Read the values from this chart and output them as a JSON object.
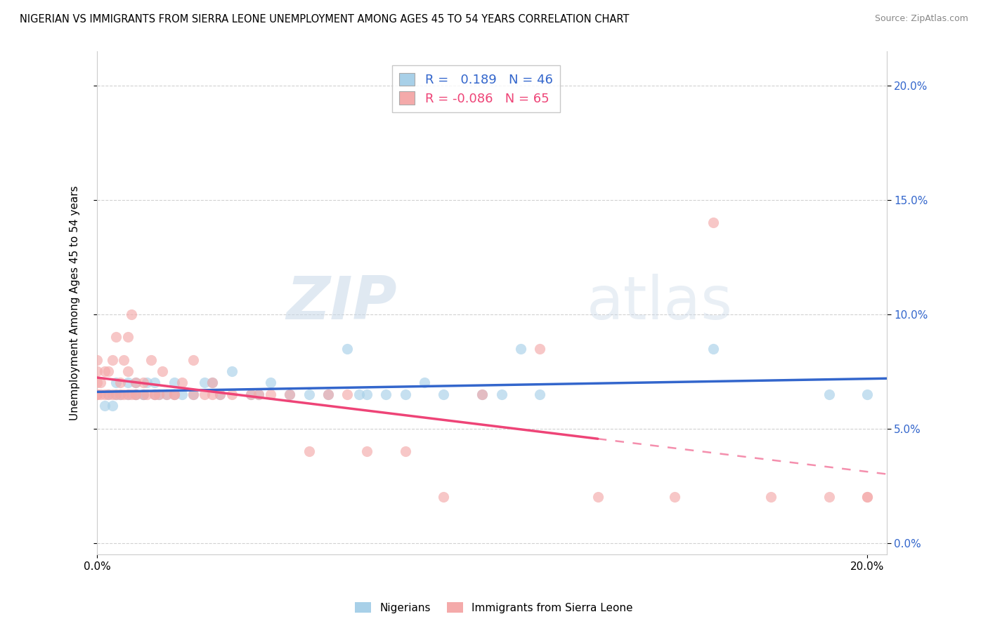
{
  "title": "NIGERIAN VS IMMIGRANTS FROM SIERRA LEONE UNEMPLOYMENT AMONG AGES 45 TO 54 YEARS CORRELATION CHART",
  "source": "Source: ZipAtlas.com",
  "ylabel": "Unemployment Among Ages 45 to 54 years",
  "xlim": [
    0.0,
    0.205
  ],
  "ylim": [
    -0.005,
    0.215
  ],
  "yticks": [
    0.0,
    0.05,
    0.1,
    0.15,
    0.2
  ],
  "xticks": [
    0.0,
    0.2
  ],
  "blue_R": 0.189,
  "blue_N": 46,
  "pink_R": -0.086,
  "pink_N": 65,
  "blue_color": "#A8D0E8",
  "pink_color": "#F4AAAA",
  "blue_line_color": "#3366CC",
  "pink_line_color": "#EE4477",
  "pink_dash_color": "#F4AAAA",
  "watermark_text": "ZIPatlas",
  "legend_label_blue": "Nigerians",
  "legend_label_pink": "Immigrants from Sierra Leone",
  "blue_scatter_x": [
    0.002,
    0.003,
    0.004,
    0.005,
    0.005,
    0.006,
    0.008,
    0.008,
    0.01,
    0.01,
    0.01,
    0.012,
    0.012,
    0.013,
    0.015,
    0.015,
    0.016,
    0.018,
    0.02,
    0.02,
    0.022,
    0.025,
    0.028,
    0.03,
    0.032,
    0.035,
    0.04,
    0.042,
    0.045,
    0.05,
    0.055,
    0.06,
    0.065,
    0.068,
    0.07,
    0.075,
    0.08,
    0.085,
    0.09,
    0.1,
    0.105,
    0.11,
    0.115,
    0.16,
    0.19,
    0.2
  ],
  "blue_scatter_y": [
    0.06,
    0.065,
    0.06,
    0.065,
    0.07,
    0.065,
    0.065,
    0.07,
    0.065,
    0.065,
    0.07,
    0.065,
    0.065,
    0.07,
    0.065,
    0.07,
    0.065,
    0.065,
    0.065,
    0.07,
    0.065,
    0.065,
    0.07,
    0.07,
    0.065,
    0.075,
    0.065,
    0.065,
    0.07,
    0.065,
    0.065,
    0.065,
    0.085,
    0.065,
    0.065,
    0.065,
    0.065,
    0.07,
    0.065,
    0.065,
    0.065,
    0.085,
    0.065,
    0.085,
    0.065,
    0.065
  ],
  "pink_scatter_x": [
    0.0,
    0.0,
    0.0,
    0.0,
    0.0,
    0.001,
    0.001,
    0.002,
    0.002,
    0.003,
    0.003,
    0.004,
    0.004,
    0.005,
    0.005,
    0.006,
    0.006,
    0.007,
    0.007,
    0.008,
    0.008,
    0.008,
    0.009,
    0.009,
    0.01,
    0.01,
    0.01,
    0.012,
    0.012,
    0.013,
    0.014,
    0.015,
    0.015,
    0.016,
    0.017,
    0.018,
    0.02,
    0.02,
    0.022,
    0.025,
    0.025,
    0.028,
    0.03,
    0.03,
    0.032,
    0.035,
    0.04,
    0.042,
    0.045,
    0.05,
    0.055,
    0.06,
    0.065,
    0.07,
    0.08,
    0.09,
    0.1,
    0.115,
    0.13,
    0.15,
    0.16,
    0.175,
    0.19,
    0.2,
    0.2
  ],
  "pink_scatter_y": [
    0.065,
    0.065,
    0.07,
    0.075,
    0.08,
    0.065,
    0.07,
    0.065,
    0.075,
    0.065,
    0.075,
    0.065,
    0.08,
    0.065,
    0.09,
    0.065,
    0.07,
    0.065,
    0.08,
    0.065,
    0.075,
    0.09,
    0.065,
    0.1,
    0.065,
    0.065,
    0.07,
    0.065,
    0.07,
    0.065,
    0.08,
    0.065,
    0.065,
    0.065,
    0.075,
    0.065,
    0.065,
    0.065,
    0.07,
    0.065,
    0.08,
    0.065,
    0.065,
    0.07,
    0.065,
    0.065,
    0.065,
    0.065,
    0.065,
    0.065,
    0.04,
    0.065,
    0.065,
    0.04,
    0.04,
    0.02,
    0.065,
    0.085,
    0.02,
    0.02,
    0.14,
    0.02,
    0.02,
    0.02,
    0.02
  ],
  "background_color": "#FFFFFF",
  "grid_color": "#CCCCCC"
}
